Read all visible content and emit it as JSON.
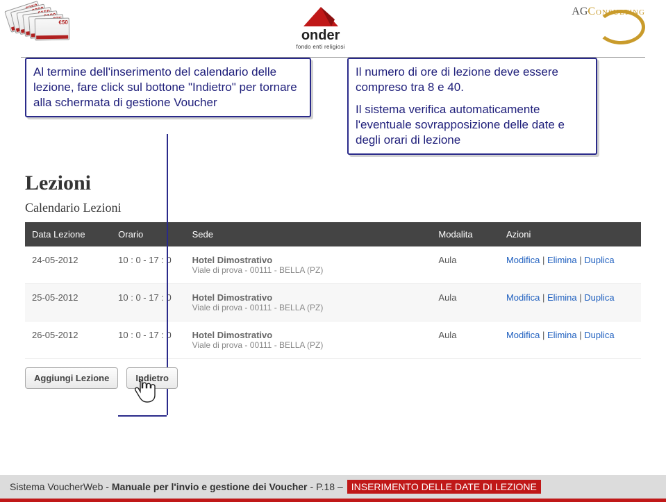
{
  "header": {
    "vouchers": [
      "€250",
      "€200",
      "€150",
      "€100",
      "€75",
      "€50"
    ],
    "center_brand": "onder",
    "center_tag": "fondo enti religiosi",
    "right_brand_a": "AG",
    "right_brand_b": "Consulting"
  },
  "callouts": {
    "left": "Al termine dell'inserimento del calendario delle lezione, fare click sul bottone \"Indietro\" per tornare alla schermata di gestione Voucher",
    "right_p1": "Il numero di ore di lezione deve essere compreso tra 8 e 40.",
    "right_p2": "Il sistema verifica automaticamente l'eventuale sovrapposizione delle date e degli orari di lezione"
  },
  "section": {
    "title": "Lezioni",
    "subtitle": "Calendario Lezioni"
  },
  "table": {
    "columns": [
      "Data Lezione",
      "Orario",
      "Sede",
      "Modalita",
      "Azioni"
    ],
    "col_widths": [
      "14%",
      "12%",
      "40%",
      "11%",
      "23%"
    ],
    "rows": [
      {
        "data": "24-05-2012",
        "orario": "10 : 0 - 17 : 0",
        "sede1": "Hotel Dimostrativo",
        "sede2": "Viale di prova - 00111 - BELLA (PZ)",
        "mod": "Aula"
      },
      {
        "data": "25-05-2012",
        "orario": "10 : 0 - 17 : 0",
        "sede1": "Hotel Dimostrativo",
        "sede2": "Viale di prova - 00111 - BELLA (PZ)",
        "mod": "Aula"
      },
      {
        "data": "26-05-2012",
        "orario": "10 : 0 - 17 : 0",
        "sede1": "Hotel Dimostrativo",
        "sede2": "Viale di prova - 00111 - BELLA (PZ)",
        "mod": "Aula"
      }
    ],
    "actions": [
      "Modifica",
      "Elimina",
      "Duplica"
    ],
    "action_sep": " | "
  },
  "buttons": {
    "add": "Aggiungi Lezione",
    "back": "Indietro"
  },
  "footer": {
    "l1": "Sistema VoucherWeb - ",
    "l2": "Manuale per l'invio e gestione dei Voucher",
    "l3": " - P.18 – ",
    "l4": "INSERIMENTO DELLE DATE DI LEZIONE"
  },
  "colors": {
    "accent": "#2a2a8a",
    "red": "#c01818",
    "gold": "#c99b2b",
    "link": "#1e5fbf"
  }
}
